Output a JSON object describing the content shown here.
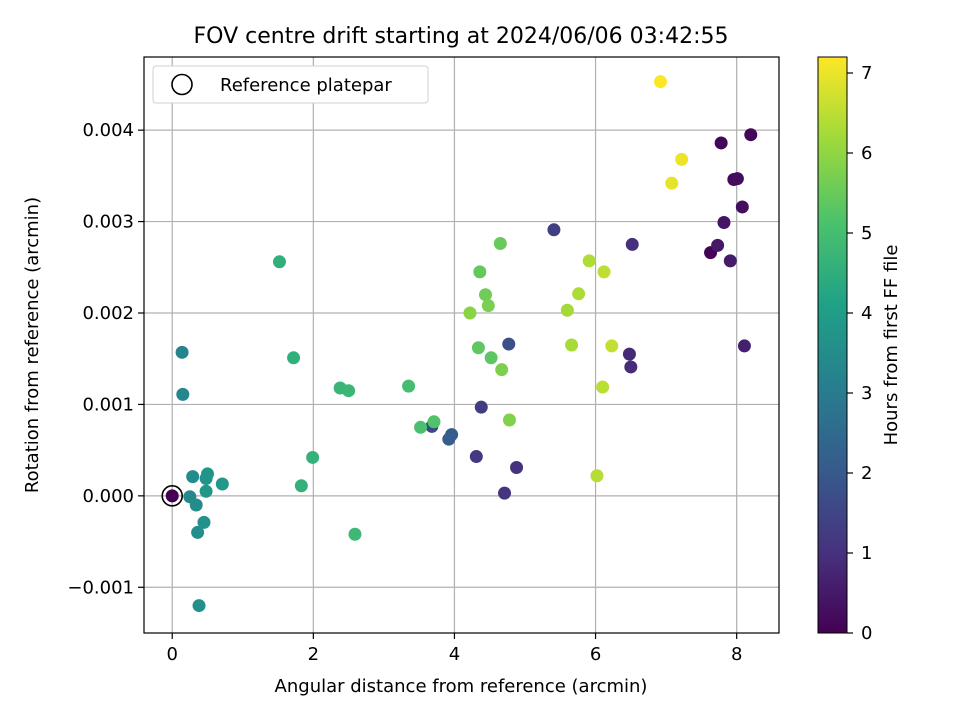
{
  "chart_data": {
    "type": "scatter",
    "title": "FOV centre drift starting at 2024/06/06 03:42:55",
    "xlabel": "Angular distance from reference (arcmin)",
    "ylabel": "Rotation from reference (arcmin)",
    "xlim": [
      -0.4,
      8.6
    ],
    "ylim": [
      -0.0015,
      0.0048
    ],
    "x_ticks": [
      0,
      2,
      4,
      6,
      8
    ],
    "x_tick_labels": [
      "0",
      "2",
      "4",
      "6",
      "8"
    ],
    "y_ticks": [
      -0.001,
      0.0,
      0.001,
      0.002,
      0.003,
      0.004
    ],
    "y_tick_labels": [
      "−0.001",
      "0.000",
      "0.001",
      "0.002",
      "0.003",
      "0.004"
    ],
    "grid": true,
    "legend": {
      "position": "upper-left",
      "entries": [
        "Reference platepar"
      ]
    },
    "reference_point": {
      "x": 0.0,
      "y": 0.0
    },
    "colorbar": {
      "label": "Hours from first FF file",
      "colormap": "viridis",
      "range": [
        0,
        7.2
      ],
      "ticks": [
        0,
        1,
        2,
        3,
        4,
        5,
        6,
        7
      ],
      "tick_labels": [
        "0",
        "1",
        "2",
        "3",
        "4",
        "5",
        "6",
        "7"
      ]
    },
    "points": [
      {
        "x": 0.0,
        "y": 0.0,
        "c": 0.0
      },
      {
        "x": 7.63,
        "y": 0.00266,
        "c": 0.05
      },
      {
        "x": 7.78,
        "y": 0.00386,
        "c": 0.1
      },
      {
        "x": 8.2,
        "y": 0.00395,
        "c": 0.15
      },
      {
        "x": 7.96,
        "y": 0.00346,
        "c": 0.2
      },
      {
        "x": 8.01,
        "y": 0.00347,
        "c": 0.25
      },
      {
        "x": 8.08,
        "y": 0.00316,
        "c": 0.3
      },
      {
        "x": 7.82,
        "y": 0.00299,
        "c": 0.4
      },
      {
        "x": 7.73,
        "y": 0.00274,
        "c": 0.5
      },
      {
        "x": 7.91,
        "y": 0.00257,
        "c": 0.55
      },
      {
        "x": 8.11,
        "y": 0.00164,
        "c": 0.65
      },
      {
        "x": 6.48,
        "y": 0.00155,
        "c": 0.85
      },
      {
        "x": 6.5,
        "y": 0.00141,
        "c": 0.9
      },
      {
        "x": 6.52,
        "y": 0.00275,
        "c": 1.0
      },
      {
        "x": 4.88,
        "y": 0.00031,
        "c": 1.05
      },
      {
        "x": 4.71,
        "y": 3e-05,
        "c": 1.1
      },
      {
        "x": 4.31,
        "y": 0.00043,
        "c": 1.2
      },
      {
        "x": 4.38,
        "y": 0.00097,
        "c": 1.3
      },
      {
        "x": 5.41,
        "y": 0.00291,
        "c": 1.35
      },
      {
        "x": 3.68,
        "y": 0.00076,
        "c": 1.6
      },
      {
        "x": 4.77,
        "y": 0.00166,
        "c": 1.75
      },
      {
        "x": 3.96,
        "y": 0.00067,
        "c": 2.0
      },
      {
        "x": 3.92,
        "y": 0.00062,
        "c": 2.1
      },
      {
        "x": 0.14,
        "y": 0.00157,
        "c": 3.25
      },
      {
        "x": 0.15,
        "y": 0.00111,
        "c": 3.3
      },
      {
        "x": 0.25,
        "y": -1e-05,
        "c": 3.4
      },
      {
        "x": 0.29,
        "y": 0.00021,
        "c": 3.45
      },
      {
        "x": 0.34,
        "y": -0.0001,
        "c": 3.5
      },
      {
        "x": 0.36,
        "y": -0.0004,
        "c": 3.55
      },
      {
        "x": 0.38,
        "y": -0.0012,
        "c": 3.6
      },
      {
        "x": 0.45,
        "y": -0.00029,
        "c": 3.65
      },
      {
        "x": 0.48,
        "y": 0.00019,
        "c": 3.7
      },
      {
        "x": 0.5,
        "y": 0.00024,
        "c": 3.75
      },
      {
        "x": 0.48,
        "y": 5e-05,
        "c": 3.8
      },
      {
        "x": 0.71,
        "y": 0.00013,
        "c": 3.85
      },
      {
        "x": 1.52,
        "y": 0.00256,
        "c": 4.55
      },
      {
        "x": 1.72,
        "y": 0.00151,
        "c": 4.55
      },
      {
        "x": 1.83,
        "y": 0.00011,
        "c": 4.6
      },
      {
        "x": 1.99,
        "y": 0.00042,
        "c": 4.65
      },
      {
        "x": 2.38,
        "y": 0.00118,
        "c": 4.75
      },
      {
        "x": 2.5,
        "y": 0.00115,
        "c": 4.8
      },
      {
        "x": 2.59,
        "y": -0.00042,
        "c": 4.85
      },
      {
        "x": 3.35,
        "y": 0.0012,
        "c": 5.0
      },
      {
        "x": 3.52,
        "y": 0.00075,
        "c": 5.1
      },
      {
        "x": 3.71,
        "y": 0.00081,
        "c": 5.2
      },
      {
        "x": 4.52,
        "y": 0.00151,
        "c": 5.35
      },
      {
        "x": 4.34,
        "y": 0.00162,
        "c": 5.4
      },
      {
        "x": 4.36,
        "y": 0.00245,
        "c": 5.45
      },
      {
        "x": 4.65,
        "y": 0.00276,
        "c": 5.5
      },
      {
        "x": 4.44,
        "y": 0.0022,
        "c": 5.6
      },
      {
        "x": 4.48,
        "y": 0.00208,
        "c": 5.7
      },
      {
        "x": 4.67,
        "y": 0.00138,
        "c": 5.75
      },
      {
        "x": 4.78,
        "y": 0.00083,
        "c": 5.8
      },
      {
        "x": 4.22,
        "y": 0.002,
        "c": 5.9
      },
      {
        "x": 5.6,
        "y": 0.00203,
        "c": 6.2
      },
      {
        "x": 5.66,
        "y": 0.00165,
        "c": 6.25
      },
      {
        "x": 5.76,
        "y": 0.00221,
        "c": 6.3
      },
      {
        "x": 5.91,
        "y": 0.00257,
        "c": 6.35
      },
      {
        "x": 6.02,
        "y": 0.00022,
        "c": 6.4
      },
      {
        "x": 6.1,
        "y": 0.00119,
        "c": 6.45
      },
      {
        "x": 6.12,
        "y": 0.00245,
        "c": 6.5
      },
      {
        "x": 6.23,
        "y": 0.00164,
        "c": 6.55
      },
      {
        "x": 7.08,
        "y": 0.00342,
        "c": 6.95
      },
      {
        "x": 7.22,
        "y": 0.00368,
        "c": 7.0
      },
      {
        "x": 6.92,
        "y": 0.00453,
        "c": 7.2
      }
    ]
  }
}
